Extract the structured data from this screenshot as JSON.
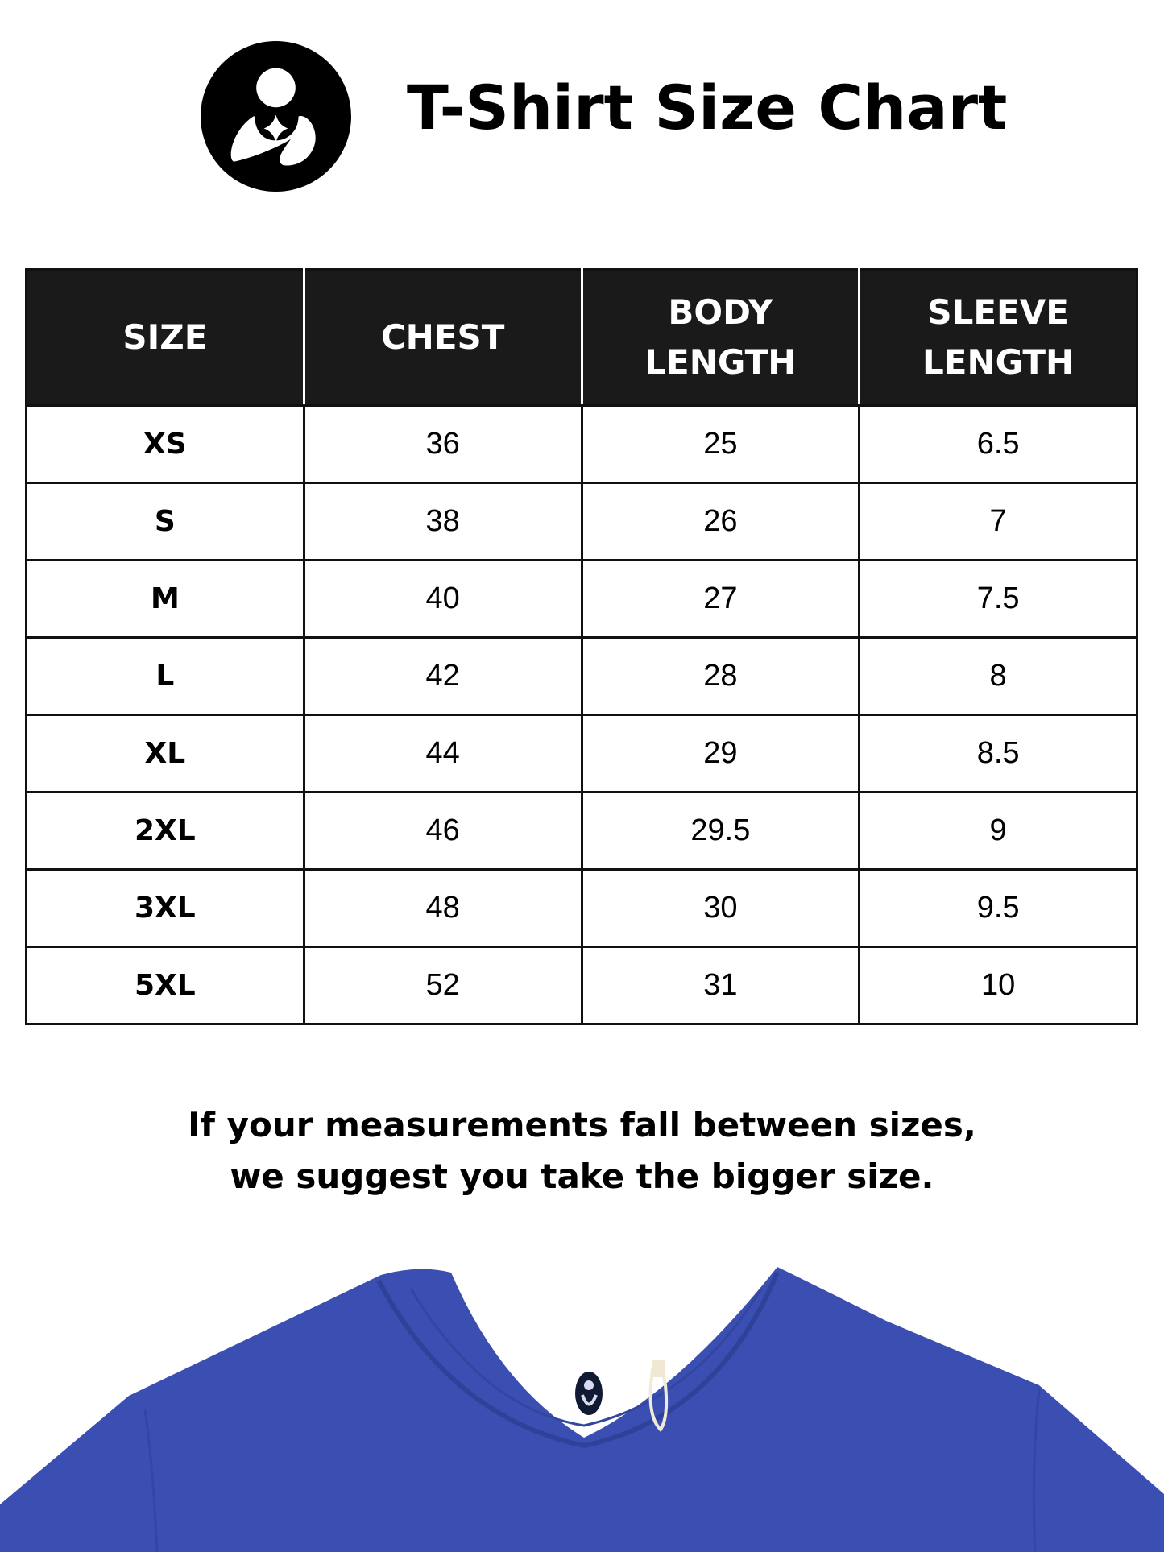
{
  "header": {
    "title": "T-Shirt Size Chart",
    "logo_icon": "mother-baby-circle-logo"
  },
  "table": {
    "columns": [
      "SIZE",
      "CHEST",
      "BODY\nLENGTH",
      "SLEEVE\nLENGTH"
    ],
    "column_lines": [
      [
        "SIZE"
      ],
      [
        "CHEST"
      ],
      [
        "BODY",
        "LENGTH"
      ],
      [
        "SLEEVE",
        "LENGTH"
      ]
    ],
    "rows": [
      [
        "XS",
        "36",
        "25",
        "6.5"
      ],
      [
        "S",
        "38",
        "26",
        "7"
      ],
      [
        "M",
        "40",
        "27",
        "7.5"
      ],
      [
        "L",
        "42",
        "28",
        "8"
      ],
      [
        "XL",
        "44",
        "29",
        "8.5"
      ],
      [
        "2XL",
        "46",
        "29.5",
        "9"
      ],
      [
        "3XL",
        "48",
        "30",
        "9.5"
      ],
      [
        "5XL",
        "52",
        "31",
        "10"
      ]
    ]
  },
  "note": {
    "line1": "If your measurements fall between sizes,",
    "line2": "we suggest you take the bigger size."
  },
  "colors": {
    "header_bg": "#1a1a1a",
    "shirt": "#3b4fb3"
  }
}
